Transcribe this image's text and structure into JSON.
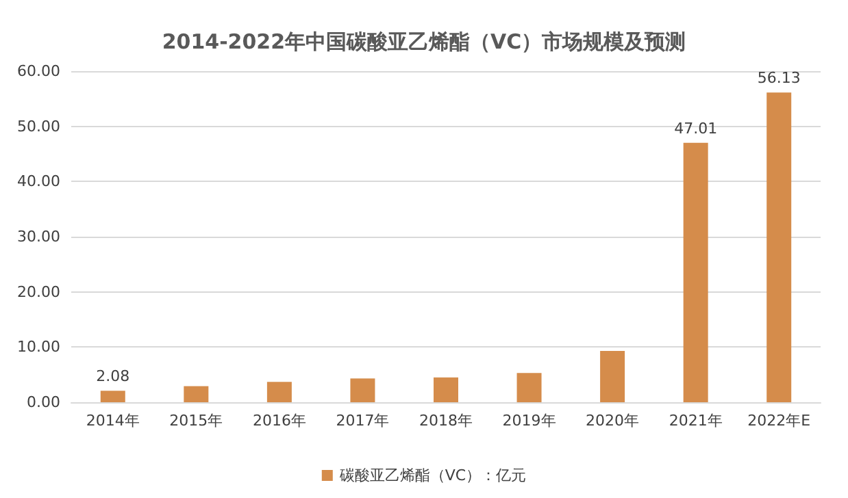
{
  "chart_data": {
    "type": "bar",
    "title": "2014-2022年中国碳酸亚乙烯酯（VC）市场规模及预测",
    "categories": [
      "2014年",
      "2015年",
      "2016年",
      "2017年",
      "2018年",
      "2019年",
      "2020年",
      "2021年",
      "2022年E"
    ],
    "series": [
      {
        "name": "碳酸亚乙烯酯（VC）：亿元",
        "color": "#d58c4b",
        "values": [
          2.08,
          2.9,
          3.7,
          4.3,
          4.5,
          5.3,
          9.3,
          47.01,
          56.13
        ],
        "value_labels": [
          "2.08",
          null,
          null,
          null,
          null,
          null,
          null,
          "47.01",
          "56.13"
        ]
      }
    ],
    "ylim": [
      0,
      60
    ],
    "yticks": [
      {
        "value": 0,
        "label": "0.00"
      },
      {
        "value": 10,
        "label": "10.00"
      },
      {
        "value": 20,
        "label": "20.00"
      },
      {
        "value": 30,
        "label": "30.00"
      },
      {
        "value": 40,
        "label": "40.00"
      },
      {
        "value": 50,
        "label": "50.00"
      },
      {
        "value": 60,
        "label": "60.00"
      }
    ],
    "grid": "y",
    "legend": "bottom"
  }
}
